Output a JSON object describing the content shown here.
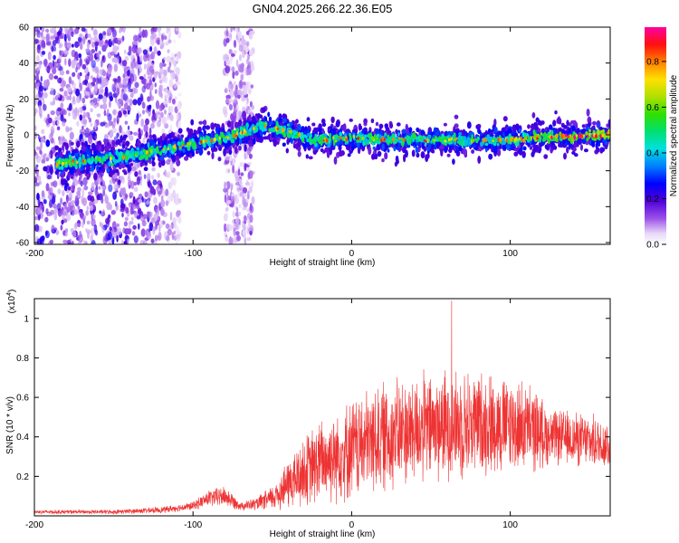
{
  "title": "GN04.2025.266.22.36.E05",
  "chart_data": [
    {
      "type": "heatmap",
      "name": "spectrogram",
      "xlabel": "Height of straight line (km)",
      "ylabel": "Frequency (Hz)",
      "xlim": [
        -200,
        163
      ],
      "ylim": [
        -61,
        60
      ],
      "xticks": [
        -200,
        -100,
        0,
        100
      ],
      "yticks": [
        60,
        40,
        20,
        0,
        -20,
        -40,
        -60
      ],
      "grid": false,
      "colorbar": {
        "label": "Normalized spectral amplitude",
        "range": [
          0,
          0.95
        ],
        "ticks": [
          0.0,
          0.2,
          0.4,
          0.6,
          0.8
        ]
      },
      "ridge": {
        "x": [
          -185,
          -150,
          -120,
          -100,
          -90,
          -75,
          -65,
          -55,
          -45,
          -35,
          -25,
          0,
          50,
          100,
          120,
          140,
          163
        ],
        "freq": [
          -16,
          -13,
          -8,
          -5,
          -3,
          -1,
          3,
          5,
          3,
          1,
          -3,
          -2,
          -3,
          -3,
          -1,
          -1,
          0
        ]
      },
      "noise_regions": [
        {
          "x": [
            -200,
            -108
          ],
          "density": "high"
        },
        {
          "x": [
            -80,
            -62
          ],
          "density": "medium"
        }
      ]
    },
    {
      "type": "line",
      "name": "snr",
      "xlabel": "Height of straight line (km)",
      "ylabel": "SNR (10 * v/v)",
      "y_multiplier": "(x10",
      "y_multiplier_exp": "4",
      "y_multiplier_close": ")",
      "xlim": [
        -200,
        163
      ],
      "ylim": [
        0,
        1.1
      ],
      "xticks": [
        -200,
        -100,
        0,
        100
      ],
      "yticks": [
        0.2,
        0.4,
        0.6,
        0.8,
        1
      ],
      "color": "#ee3333",
      "envelope": {
        "x": [
          -200,
          -150,
          -120,
          -100,
          -90,
          -80,
          -70,
          -60,
          -50,
          -40,
          -30,
          -20,
          -10,
          0,
          20,
          40,
          60,
          80,
          100,
          115,
          125,
          140,
          163
        ],
        "mean": [
          0.02,
          0.02,
          0.03,
          0.05,
          0.09,
          0.1,
          0.05,
          0.06,
          0.09,
          0.16,
          0.22,
          0.27,
          0.31,
          0.34,
          0.4,
          0.44,
          0.46,
          0.47,
          0.46,
          0.44,
          0.4,
          0.39,
          0.36
        ],
        "amplitude": [
          0.01,
          0.01,
          0.015,
          0.02,
          0.04,
          0.05,
          0.02,
          0.03,
          0.06,
          0.12,
          0.17,
          0.2,
          0.22,
          0.24,
          0.26,
          0.26,
          0.26,
          0.25,
          0.23,
          0.2,
          0.13,
          0.13,
          0.12
        ]
      },
      "peak": {
        "x": 63,
        "y": 1.09
      }
    }
  ]
}
